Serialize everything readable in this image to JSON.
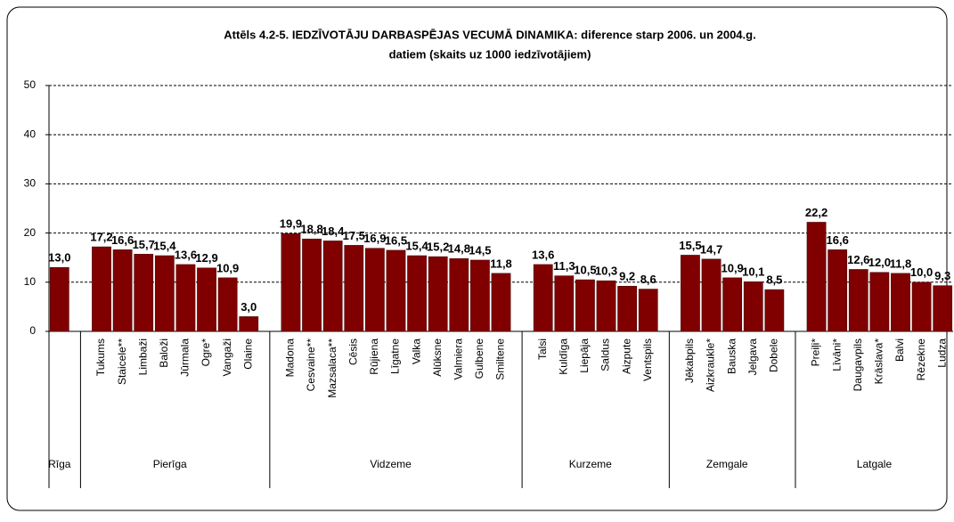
{
  "chart_data": {
    "type": "bar",
    "title": [
      "Attēls 4.2-5. IEDZĪVOTĀJU DARBASPĒJAS VECUMĀ DINAMIKA: diference starp 2006. un 2004.g.",
      "datiem (skaits uz 1000 iedzīvotājiem)"
    ],
    "color": "#800000",
    "ylim": [
      0,
      50
    ],
    "yticks": [
      0,
      10,
      20,
      30,
      40,
      50
    ],
    "grid": true,
    "groups": [
      {
        "name": "Rīga",
        "categories": [
          null
        ],
        "values": [
          13.0
        ],
        "value_labels": [
          "13,0"
        ]
      },
      {
        "name": "Pierīga",
        "categories": [
          "Tukums",
          "Staicele**",
          "Limbaži",
          "Baloži",
          "Jūrmala",
          "Ogre*",
          "Vangaži",
          "Olaine"
        ],
        "values": [
          17.2,
          16.6,
          15.7,
          15.4,
          13.6,
          12.9,
          10.9,
          3.0
        ],
        "value_labels": [
          "17,2",
          "16,6",
          "15,7",
          "15,4",
          "13,6",
          "12,9",
          "10,9",
          "3,0"
        ]
      },
      {
        "name": "Vidzeme",
        "categories": [
          "Madona",
          "Cesvaine**",
          "Mazsalaca**",
          "Cēsis",
          "Rūjiena",
          "Līgatne",
          "Valka",
          "Alūksne",
          "Valmiera",
          "Gulbene",
          "Smiltene"
        ],
        "values": [
          19.9,
          18.8,
          18.4,
          17.5,
          16.9,
          16.5,
          15.4,
          15.2,
          14.8,
          14.5,
          11.8
        ],
        "value_labels": [
          "19,9",
          "18,8",
          "18,4",
          "17,5",
          "16,9",
          "16,5",
          "15,4",
          "15,2",
          "14,8",
          "14,5",
          "11,8"
        ]
      },
      {
        "name": "Kurzeme",
        "categories": [
          "Talsi",
          "Kuldīga",
          "Liepāja",
          "Saldus",
          "Aizpute",
          "Ventspils"
        ],
        "values": [
          13.6,
          11.3,
          10.5,
          10.3,
          9.2,
          8.6
        ],
        "value_labels": [
          "13,6",
          "11,3",
          "10,5",
          "10,3",
          "9,2",
          "8,6"
        ]
      },
      {
        "name": "Zemgale",
        "categories": [
          "Jēkabpils",
          "Aizkraukle*",
          "Bauska",
          "Jelgava",
          "Dobele"
        ],
        "values": [
          15.5,
          14.7,
          10.9,
          10.1,
          8.5
        ],
        "value_labels": [
          "15,5",
          "14,7",
          "10,9",
          "10,1",
          "8,5"
        ]
      },
      {
        "name": "Latgale",
        "categories": [
          "Preiļi*",
          "Līvāni*",
          "Daugavpils",
          "Krāslava*",
          "Balvi",
          "Rēzekne",
          "Ludza"
        ],
        "values": [
          22.2,
          16.6,
          12.6,
          12.0,
          11.8,
          10.0,
          9.3
        ],
        "value_labels": [
          "22,2",
          "16,6",
          "12,6",
          "12,0",
          "11,8",
          "10,0",
          "9,3"
        ]
      }
    ]
  }
}
